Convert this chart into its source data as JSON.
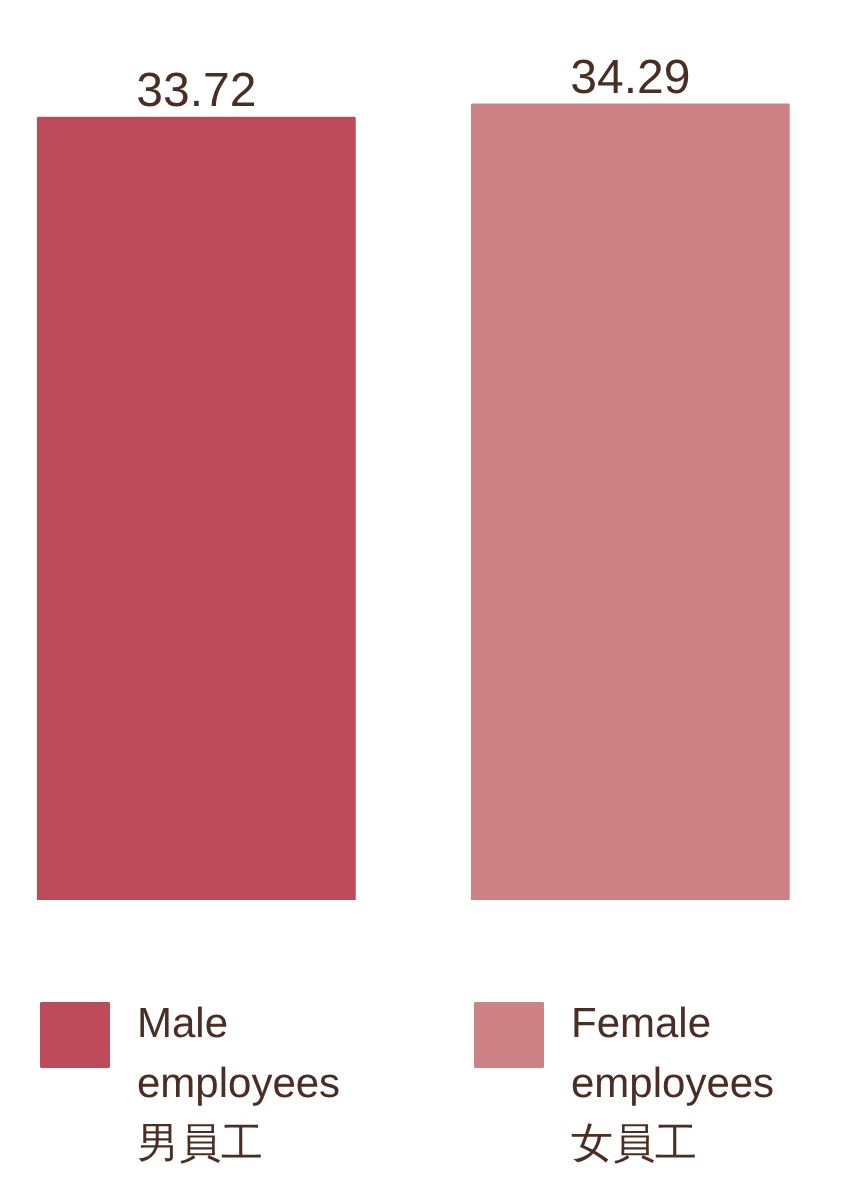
{
  "chart_data": {
    "type": "bar",
    "categories": [
      null
    ],
    "series": [
      {
        "name": "Male employees 男員工",
        "color": "#bd4b5a",
        "values": [
          33.72
        ]
      },
      {
        "name": "Female employees 女員工",
        "color": "#cd8285",
        "values": [
          34.29
        ]
      }
    ],
    "tick_labels": false,
    "data_labels": true,
    "legend": "bottom"
  }
}
